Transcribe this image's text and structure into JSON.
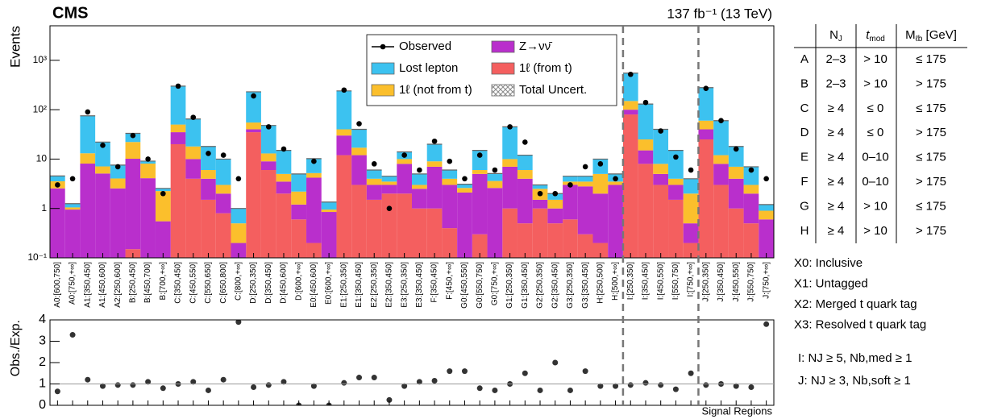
{
  "chart_data": [
    {
      "type": "stacked_bar",
      "log_scale": true,
      "experiment": "CMS",
      "lumi": "137 fb⁻¹ (13 TeV)",
      "ylabel": "Events",
      "categories": [
        "A0:[600,750]",
        "A0:[750,+∞]",
        "A1:[350,450]",
        "A1:[450,600]",
        "A2:[250,600]",
        "B:[250,450]",
        "B:[450,700]",
        "B:[700,+∞]",
        "C:[350,450]",
        "C:[450,550]",
        "C:[550,650]",
        "C:[650,800]",
        "C:[800,+∞]",
        "D:[250,350]",
        "D:[350,450]",
        "D:[450,600]",
        "D:[600,+∞]",
        "E0:[450,600]",
        "E0:[600,+∞]",
        "E1:[250,350]",
        "E1:[350,450]",
        "E2:[250,350]",
        "E2:[350,450]",
        "E3:[250,350]",
        "E3:[350,450]",
        "F:[350,450]",
        "F:[450,+∞]",
        "G0:[450,550]",
        "G0:[550,750]",
        "G0:[750,+∞]",
        "G1:[250,350]",
        "G1:[350,450]",
        "G2:[250,350]",
        "G2:[350,450]",
        "G3:[250,350]",
        "G3:[350,450]",
        "H:[250,500]",
        "H:[500,+∞]",
        "I:[250,350]",
        "I:[350,450]",
        "I:[450,550]",
        "I:[550,750]",
        "I:[750,+∞]",
        "J:[250,350]",
        "J:[350,450]",
        "J:[450,550]",
        "J:[550,750]",
        "J:[750,+∞]"
      ],
      "series": [
        {
          "name": "1ℓ (from t)",
          "color": "#f45f5f",
          "values": [
            0.05,
            0.05,
            0.1,
            0.1,
            0.05,
            0.15,
            0.1,
            0.05,
            20,
            4,
            1.5,
            0.8,
            0.1,
            35,
            6,
            2,
            0.6,
            0.2,
            0.05,
            12,
            3,
            1.5,
            2,
            2,
            1,
            1,
            0.4,
            0.1,
            0.3,
            0.1,
            1,
            0.5,
            1,
            0.5,
            0.6,
            0.3,
            0.2,
            0.1,
            80,
            8,
            3,
            1.5,
            0.2,
            25,
            3,
            1,
            0.5,
            0.1
          ]
        },
        {
          "name": "Z→νν̄",
          "color": "#b92fcc",
          "values": [
            2.5,
            0.9,
            8,
            5,
            2.5,
            10,
            4,
            0.5,
            15,
            6,
            2.5,
            1.2,
            0.1,
            5,
            3,
            1.5,
            0.6,
            4,
            0.8,
            18,
            9,
            1.5,
            1,
            6,
            1.5,
            6,
            2.6,
            2,
            4.7,
            2.5,
            6,
            3.5,
            0.5,
            0.5,
            2.4,
            2.5,
            1.8,
            2.9,
            20,
            7,
            2,
            1.5,
            0.3,
            15,
            5,
            3,
            1.5,
            0.5
          ]
        },
        {
          "name": "1ℓ (not from t)",
          "color": "#fbbf2c",
          "values": [
            1,
            0.1,
            5,
            2,
            1.5,
            12,
            4,
            1.7,
            15,
            8,
            2,
            1,
            0.3,
            15,
            4,
            1.5,
            1,
            1,
            0.1,
            10,
            5,
            1,
            0.5,
            2,
            0.5,
            2,
            1,
            0.5,
            1,
            1,
            3,
            2,
            1,
            0.5,
            0.5,
            0.7,
            3,
            0.5,
            50,
            10,
            3,
            1,
            1.5,
            20,
            4,
            3,
            1,
            0.3
          ]
        },
        {
          "name": "Lost lepton",
          "color": "#3cc2f0",
          "values": [
            1,
            0.2,
            62,
            15,
            3.5,
            11,
            1,
            0.3,
            250,
            47,
            12,
            7,
            0.5,
            175,
            35,
            10,
            2.8,
            5,
            0.4,
            200,
            23,
            2,
            1,
            4,
            2,
            11,
            2,
            0.5,
            9,
            1.5,
            35,
            6,
            0.5,
            0.5,
            1,
            1,
            5,
            1.5,
            400,
            105,
            32,
            11,
            2,
            220,
            48,
            11,
            4,
            0.3
          ]
        }
      ],
      "observed": {
        "name": "Observed",
        "color": "#000000",
        "values": [
          3,
          4,
          90,
          19,
          7,
          30,
          10,
          2,
          300,
          70,
          13,
          12,
          4,
          190,
          45,
          16,
          0,
          9,
          0,
          250,
          52,
          8,
          1,
          12,
          6,
          23,
          9,
          4,
          12,
          6,
          45,
          22,
          2,
          2,
          3,
          7,
          8,
          4,
          520,
          140,
          37,
          11,
          6,
          270,
          60,
          16,
          6,
          4
        ]
      },
      "uncertainty_label": "Total Uncert.",
      "ylim": [
        0.1,
        5000
      ],
      "yticks": [
        {
          "value": 0.1,
          "label": "10⁻¹"
        },
        1,
        10,
        {
          "value": 100,
          "label": "10²"
        },
        {
          "value": 1000,
          "label": "10³"
        }
      ]
    },
    {
      "type": "points",
      "ylabel": "Obs./Exp.",
      "xlabel": "Signal Regions",
      "color": "#333333",
      "values": [
        0.65,
        3.3,
        1.2,
        0.9,
        0.95,
        0.95,
        1.1,
        0.8,
        1.0,
        1.1,
        0.7,
        1.2,
        3.9,
        0.85,
        0.95,
        1.1,
        0,
        0.9,
        0,
        1.05,
        1.3,
        1.3,
        0.25,
        0.9,
        1.1,
        1.15,
        1.6,
        1.6,
        0.8,
        0.7,
        1.0,
        1.5,
        0.7,
        2.0,
        0.7,
        1.6,
        0.9,
        0.9,
        0.95,
        1.05,
        0.95,
        0.75,
        1.5,
        0.95,
        1.0,
        0.9,
        0.85,
        3.8
      ],
      "ylim": [
        0,
        4
      ],
      "yticks": [
        0,
        1,
        2,
        3,
        4
      ]
    }
  ],
  "region_table": {
    "headers": [
      {
        "main": "N",
        "sub": "J"
      },
      {
        "main": "t",
        "sub": "mod"
      },
      {
        "main": "M",
        "sub": "ℓb",
        "suffix": " [GeV]"
      }
    ],
    "rows": [
      [
        "A",
        "2–3",
        "> 10",
        "≤ 175"
      ],
      [
        "B",
        "2–3",
        "> 10",
        "> 175"
      ],
      [
        "C",
        "≥ 4",
        "≤ 0",
        "≤ 175"
      ],
      [
        "D",
        "≥ 4",
        "≤ 0",
        "> 175"
      ],
      [
        "E",
        "≥ 4",
        "0–10",
        "≤ 175"
      ],
      [
        "F",
        "≥ 4",
        "0–10",
        "> 175"
      ],
      [
        "G",
        "≥ 4",
        "> 10",
        "≤ 175"
      ],
      [
        "H",
        "≥ 4",
        "> 10",
        "> 175"
      ]
    ]
  },
  "definitions": [
    "X0: Inclusive",
    "X1: Untagged",
    "X2: Merged t quark tag",
    "X3: Resolved t quark tag"
  ],
  "groups": [
    "I: NJ ≥ 5, Nb,med ≥ 1",
    "J: NJ ≥ 3, Nb,soft ≥ 1"
  ]
}
